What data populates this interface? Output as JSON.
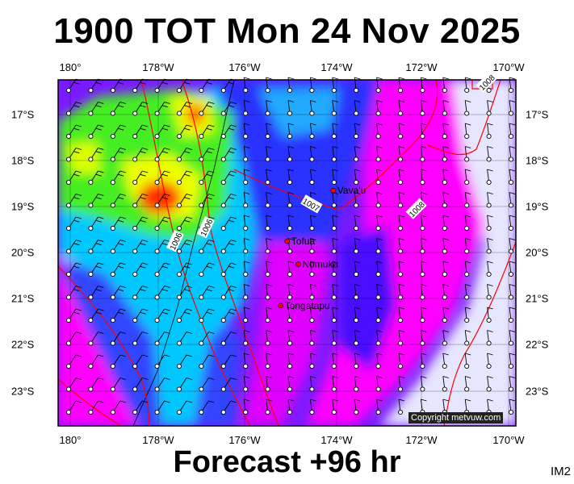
{
  "header": {
    "title": "1900 TOT Mon 24 Nov 2025"
  },
  "footer": {
    "forecast_label": "Forecast +96 hr",
    "code": "IM2"
  },
  "copyright": "Copyright metvuw.com",
  "axes": {
    "lon_labels": [
      "180°",
      "178°W",
      "176°W",
      "174°W",
      "172°W",
      "170°W"
    ],
    "lon_values": [
      180,
      178,
      176,
      174,
      172,
      170
    ],
    "lat_labels": [
      "17°S",
      "18°S",
      "19°S",
      "20°S",
      "21°S",
      "22°S",
      "23°S"
    ],
    "lat_values": [
      17,
      18,
      19,
      20,
      21,
      22,
      23
    ],
    "lon_range_deg_west": [
      180,
      170.2
    ],
    "lat_range_deg_south": [
      16.25,
      23.75
    ]
  },
  "places": [
    {
      "name": "Vava'u",
      "lon_w": 174.0,
      "lat_s": 18.65
    },
    {
      "name": "Tofua",
      "lon_w": 175.05,
      "lat_s": 19.75
    },
    {
      "name": "Nomuka",
      "lon_w": 174.8,
      "lat_s": 20.25
    },
    {
      "name": "Tongatapu",
      "lon_w": 175.2,
      "lat_s": 21.15
    }
  ],
  "isobars": [
    {
      "label": "1006",
      "lon_w": 177.6,
      "lat_s": 19.75
    },
    {
      "label": "1006",
      "lon_w": 176.9,
      "lat_s": 19.45
    },
    {
      "label": "1007",
      "lon_w": 174.5,
      "lat_s": 18.95
    },
    {
      "label": "1008",
      "lon_w": 172.1,
      "lat_s": 19.05
    },
    {
      "label": "1008",
      "lon_w": 170.5,
      "lat_s": 16.3
    }
  ],
  "colors": {
    "land_border": "#000000",
    "isobar": "#ff0000",
    "calm": "#e6e6ff",
    "magenta": "#ff00ff",
    "purple": "#9900ff",
    "blue": "#2222ff",
    "cyan": "#00ccff",
    "green": "#44ee22",
    "yellow": "#ffff00",
    "red": "#ff3300"
  }
}
